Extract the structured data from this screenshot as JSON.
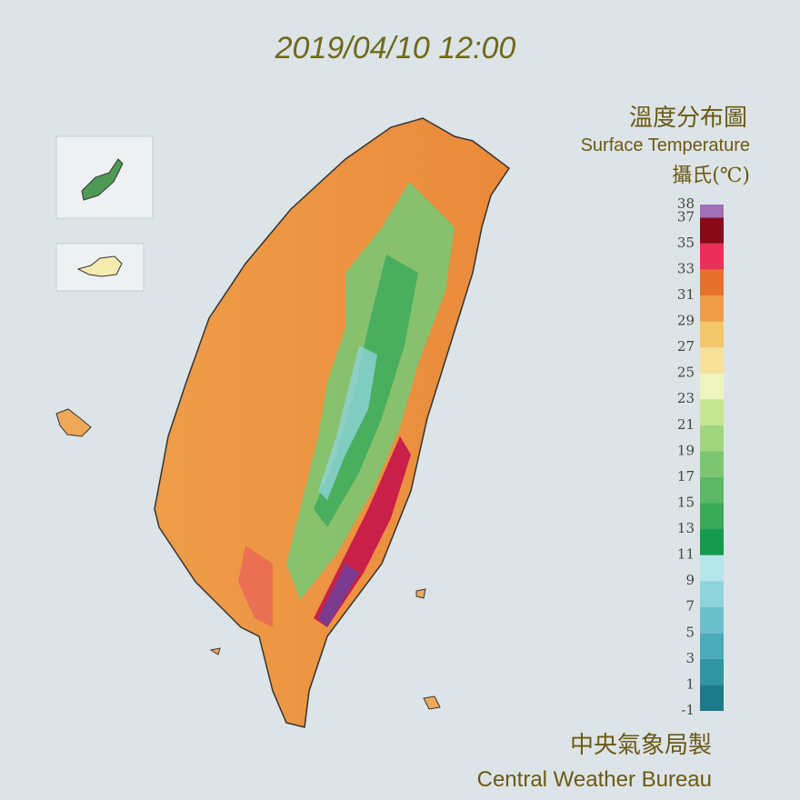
{
  "header": {
    "timestamp": "2019/04/10 12:00"
  },
  "legend": {
    "title": "溫度分布圖",
    "subtitle": "Surface Temperature",
    "unit": "攝氏(℃)",
    "ticks": [
      -1,
      1,
      3,
      5,
      7,
      9,
      11,
      13,
      15,
      17,
      19,
      21,
      23,
      25,
      27,
      29,
      31,
      33,
      35,
      37,
      38
    ],
    "colors": [
      "#1e7a8a",
      "#2f95a3",
      "#4aacb8",
      "#6cc0cb",
      "#8fd3da",
      "#b4e6ea",
      "#159a4e",
      "#3aa95a",
      "#5db866",
      "#7cc672",
      "#a0d67e",
      "#c5e58e",
      "#eef4c0",
      "#f7e09a",
      "#f3c66a",
      "#ee9d45",
      "#e8702e",
      "#e8305a",
      "#8a0a1a",
      "#a070b8"
    ]
  },
  "footer": {
    "agency_zh": "中央氣象局製",
    "agency_en": "Central Weather Bureau"
  }
}
